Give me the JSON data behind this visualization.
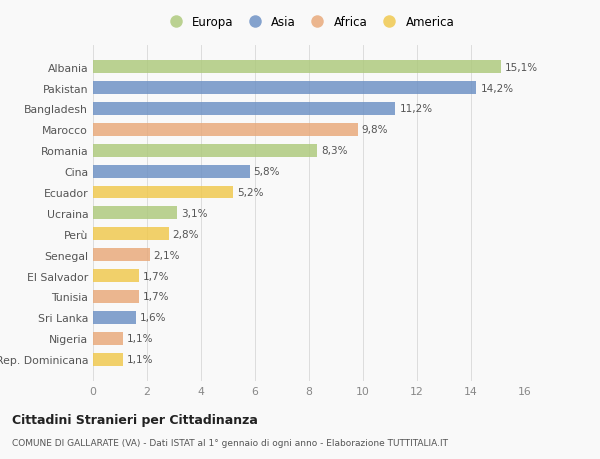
{
  "categories": [
    "Albania",
    "Pakistan",
    "Bangladesh",
    "Marocco",
    "Romania",
    "Cina",
    "Ecuador",
    "Ucraina",
    "Perù",
    "Senegal",
    "El Salvador",
    "Tunisia",
    "Sri Lanka",
    "Nigeria",
    "Rep. Dominicana"
  ],
  "values": [
    15.1,
    14.2,
    11.2,
    9.8,
    8.3,
    5.8,
    5.2,
    3.1,
    2.8,
    2.1,
    1.7,
    1.7,
    1.6,
    1.1,
    1.1
  ],
  "labels": [
    "15,1%",
    "14,2%",
    "11,2%",
    "9,8%",
    "8,3%",
    "5,8%",
    "5,2%",
    "3,1%",
    "2,8%",
    "2,1%",
    "1,7%",
    "1,7%",
    "1,6%",
    "1,1%",
    "1,1%"
  ],
  "regions": [
    "Europa",
    "Asia",
    "Asia",
    "Africa",
    "Europa",
    "Asia",
    "America",
    "Europa",
    "America",
    "Africa",
    "America",
    "Africa",
    "Asia",
    "Africa",
    "America"
  ],
  "colors": {
    "Europa": "#adc97a",
    "Asia": "#6b8fc4",
    "Africa": "#e8a878",
    "America": "#f0c84a"
  },
  "legend_order": [
    "Europa",
    "Asia",
    "Africa",
    "America"
  ],
  "title": "Cittadini Stranieri per Cittadinanza",
  "subtitle": "COMUNE DI GALLARATE (VA) - Dati ISTAT al 1° gennaio di ogni anno - Elaborazione TUTTITALIA.IT",
  "xlim": [
    0,
    16
  ],
  "xticks": [
    0,
    2,
    4,
    6,
    8,
    10,
    12,
    14,
    16
  ],
  "background_color": "#f9f9f9",
  "bar_height": 0.62,
  "grid_color": "#dddddd"
}
